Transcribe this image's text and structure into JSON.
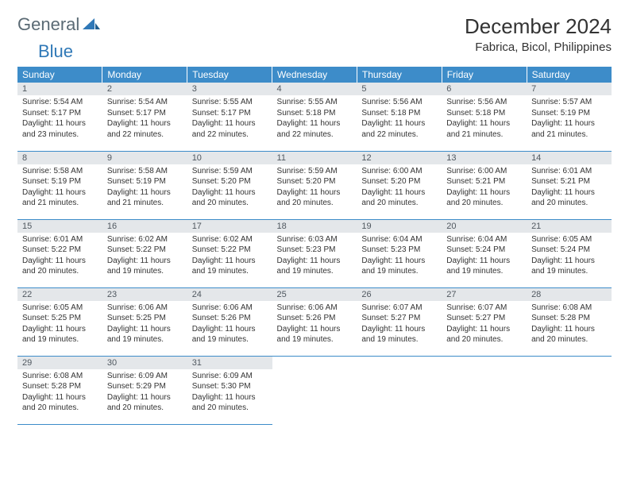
{
  "logo": {
    "part1": "General",
    "part2": "Blue"
  },
  "title": "December 2024",
  "location": "Fabrica, Bicol, Philippines",
  "colors": {
    "header_bg": "#3d8cc9",
    "daynum_bg": "#e4e7ea",
    "border": "#3d8cc9",
    "logo_general": "#5a6a74",
    "logo_blue": "#2f78b7",
    "text": "#333333"
  },
  "weekdays": [
    "Sunday",
    "Monday",
    "Tuesday",
    "Wednesday",
    "Thursday",
    "Friday",
    "Saturday"
  ],
  "days": [
    {
      "n": 1,
      "sr": "5:54 AM",
      "ss": "5:17 PM",
      "dl": "11 hours and 23 minutes."
    },
    {
      "n": 2,
      "sr": "5:54 AM",
      "ss": "5:17 PM",
      "dl": "11 hours and 22 minutes."
    },
    {
      "n": 3,
      "sr": "5:55 AM",
      "ss": "5:17 PM",
      "dl": "11 hours and 22 minutes."
    },
    {
      "n": 4,
      "sr": "5:55 AM",
      "ss": "5:18 PM",
      "dl": "11 hours and 22 minutes."
    },
    {
      "n": 5,
      "sr": "5:56 AM",
      "ss": "5:18 PM",
      "dl": "11 hours and 22 minutes."
    },
    {
      "n": 6,
      "sr": "5:56 AM",
      "ss": "5:18 PM",
      "dl": "11 hours and 21 minutes."
    },
    {
      "n": 7,
      "sr": "5:57 AM",
      "ss": "5:19 PM",
      "dl": "11 hours and 21 minutes."
    },
    {
      "n": 8,
      "sr": "5:58 AM",
      "ss": "5:19 PM",
      "dl": "11 hours and 21 minutes."
    },
    {
      "n": 9,
      "sr": "5:58 AM",
      "ss": "5:19 PM",
      "dl": "11 hours and 21 minutes."
    },
    {
      "n": 10,
      "sr": "5:59 AM",
      "ss": "5:20 PM",
      "dl": "11 hours and 20 minutes."
    },
    {
      "n": 11,
      "sr": "5:59 AM",
      "ss": "5:20 PM",
      "dl": "11 hours and 20 minutes."
    },
    {
      "n": 12,
      "sr": "6:00 AM",
      "ss": "5:20 PM",
      "dl": "11 hours and 20 minutes."
    },
    {
      "n": 13,
      "sr": "6:00 AM",
      "ss": "5:21 PM",
      "dl": "11 hours and 20 minutes."
    },
    {
      "n": 14,
      "sr": "6:01 AM",
      "ss": "5:21 PM",
      "dl": "11 hours and 20 minutes."
    },
    {
      "n": 15,
      "sr": "6:01 AM",
      "ss": "5:22 PM",
      "dl": "11 hours and 20 minutes."
    },
    {
      "n": 16,
      "sr": "6:02 AM",
      "ss": "5:22 PM",
      "dl": "11 hours and 19 minutes."
    },
    {
      "n": 17,
      "sr": "6:02 AM",
      "ss": "5:22 PM",
      "dl": "11 hours and 19 minutes."
    },
    {
      "n": 18,
      "sr": "6:03 AM",
      "ss": "5:23 PM",
      "dl": "11 hours and 19 minutes."
    },
    {
      "n": 19,
      "sr": "6:04 AM",
      "ss": "5:23 PM",
      "dl": "11 hours and 19 minutes."
    },
    {
      "n": 20,
      "sr": "6:04 AM",
      "ss": "5:24 PM",
      "dl": "11 hours and 19 minutes."
    },
    {
      "n": 21,
      "sr": "6:05 AM",
      "ss": "5:24 PM",
      "dl": "11 hours and 19 minutes."
    },
    {
      "n": 22,
      "sr": "6:05 AM",
      "ss": "5:25 PM",
      "dl": "11 hours and 19 minutes."
    },
    {
      "n": 23,
      "sr": "6:06 AM",
      "ss": "5:25 PM",
      "dl": "11 hours and 19 minutes."
    },
    {
      "n": 24,
      "sr": "6:06 AM",
      "ss": "5:26 PM",
      "dl": "11 hours and 19 minutes."
    },
    {
      "n": 25,
      "sr": "6:06 AM",
      "ss": "5:26 PM",
      "dl": "11 hours and 19 minutes."
    },
    {
      "n": 26,
      "sr": "6:07 AM",
      "ss": "5:27 PM",
      "dl": "11 hours and 19 minutes."
    },
    {
      "n": 27,
      "sr": "6:07 AM",
      "ss": "5:27 PM",
      "dl": "11 hours and 20 minutes."
    },
    {
      "n": 28,
      "sr": "6:08 AM",
      "ss": "5:28 PM",
      "dl": "11 hours and 20 minutes."
    },
    {
      "n": 29,
      "sr": "6:08 AM",
      "ss": "5:28 PM",
      "dl": "11 hours and 20 minutes."
    },
    {
      "n": 30,
      "sr": "6:09 AM",
      "ss": "5:29 PM",
      "dl": "11 hours and 20 minutes."
    },
    {
      "n": 31,
      "sr": "6:09 AM",
      "ss": "5:30 PM",
      "dl": "11 hours and 20 minutes."
    }
  ],
  "labels": {
    "sunrise": "Sunrise:",
    "sunset": "Sunset:",
    "daylight": "Daylight:"
  }
}
